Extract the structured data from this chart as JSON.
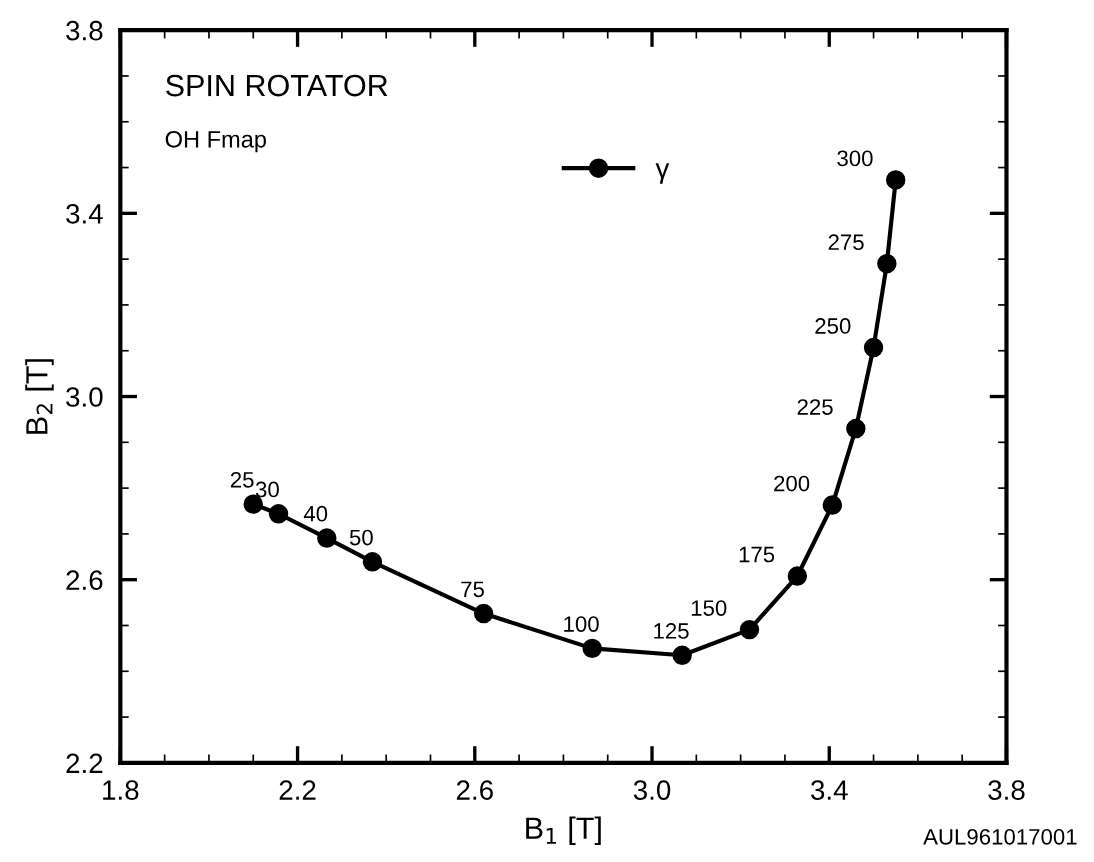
{
  "chart_data": {
    "type": "line",
    "title": "SPIN ROTATOR",
    "subtitle": "OH Fmap",
    "xlabel": "B$_{1}$ [T]",
    "ylabel": "B$_{2}$ [T]",
    "x": [
      2.1,
      2.157,
      2.266,
      2.369,
      2.62,
      2.865,
      3.068,
      3.22,
      3.328,
      3.407,
      3.46,
      3.5,
      3.53,
      3.55
    ],
    "series": [
      {
        "name": "γ",
        "color": "#000000",
        "values": [
          2.765,
          2.744,
          2.691,
          2.639,
          2.526,
          2.45,
          2.435,
          2.491,
          2.608,
          2.763,
          2.93,
          3.107,
          3.29,
          3.473
        ]
      }
    ],
    "xlim": [
      1.8,
      3.8
    ],
    "xticks": [
      1.8,
      2.2,
      2.6,
      {
        "value": 3,
        "label": "3.0"
      },
      3.4,
      3.8
    ],
    "ylim": [
      2.2,
      3.8
    ],
    "yticks": [
      2.2,
      2.6,
      {
        "value": 3,
        "label": "3.0"
      },
      3.4,
      3.8
    ],
    "marker": "circle",
    "line_style": "solid",
    "legend": "top",
    "grid": false,
    "annotations": [
      {
        "text": "25",
        "x": 2.1,
        "y": 2.765
      },
      {
        "text": "30",
        "x": 2.157,
        "y": 2.744
      },
      {
        "text": "40",
        "x": 2.266,
        "y": 2.691
      },
      {
        "text": "50",
        "x": 2.369,
        "y": 2.639
      },
      {
        "text": "75",
        "x": 2.62,
        "y": 2.526
      },
      {
        "text": "100",
        "x": 2.865,
        "y": 2.45
      },
      {
        "text": "125",
        "x": 3.068,
        "y": 2.435
      },
      {
        "text": "150",
        "x": 3.22,
        "y": 2.491
      },
      {
        "text": "175",
        "x": 3.328,
        "y": 2.608
      },
      {
        "text": "200",
        "x": 3.407,
        "y": 2.763
      },
      {
        "text": "225",
        "x": 3.46,
        "y": 2.93
      },
      {
        "text": "250",
        "x": 3.5,
        "y": 3.107
      },
      {
        "text": "275",
        "x": 3.53,
        "y": 3.29
      },
      {
        "text": "300",
        "x": 3.55,
        "y": 3.473
      },
      "AUL961017001"
    ]
  }
}
